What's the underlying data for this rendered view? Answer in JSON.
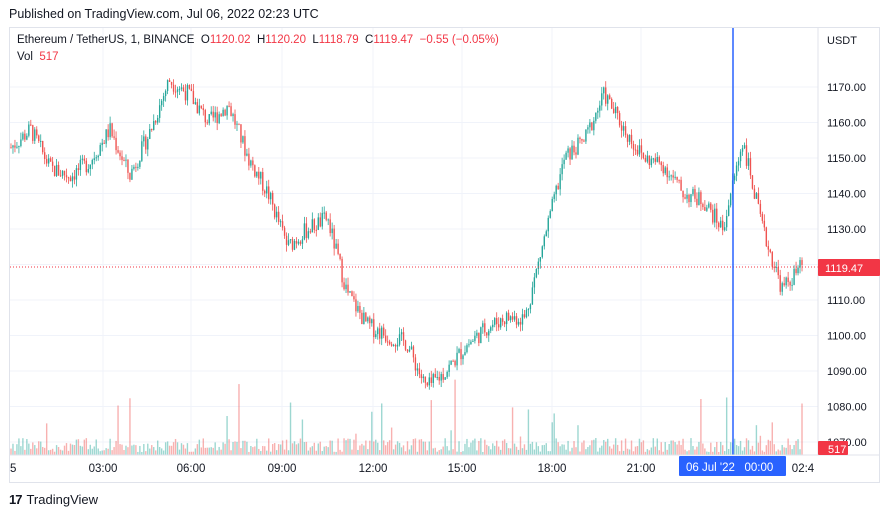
{
  "header": {
    "published": "Published on TradingView.com, Jul 06, 2022 02:23 UTC"
  },
  "legend": {
    "symbol": "Ethereum / TetherUS, 1, BINANCE",
    "o_label": "O",
    "o": "1120.02",
    "h_label": "H",
    "h": "1120.20",
    "l_label": "L",
    "l": "1118.79",
    "c_label": "C",
    "c": "1119.47",
    "change": "−0.55 (−0.05%)",
    "vol_label": "Vol",
    "vol": "517"
  },
  "price_axis": {
    "currency": "USDT",
    "current_price": "1119.47",
    "current_volume": "517"
  },
  "time_axis": {
    "crosshair_label": "06 Jul '22   00:00"
  },
  "footer": {
    "brand": "TradingView"
  },
  "colors": {
    "up": "#26a69a",
    "down": "#ef5350",
    "crosshair": "#2962ff",
    "price_tag": "#f23645"
  },
  "chart_data": {
    "type": "candlestick",
    "symbol": "ETHUSDT",
    "ylim": [
      1065,
      1180
    ],
    "y_ticks": [
      1070,
      1080,
      1090,
      1100,
      1110,
      1120,
      1130,
      1140,
      1150,
      1160,
      1170
    ],
    "x_ticks": [
      "5",
      "03:00",
      "06:00",
      "09:00",
      "12:00",
      "15:00",
      "18:00",
      "21:00",
      "02:4"
    ],
    "close_path": [
      [
        "01:00",
        1153
      ],
      [
        "01:45",
        1158
      ],
      [
        "02:30",
        1147
      ],
      [
        "03:15",
        1145
      ],
      [
        "04:00",
        1149
      ],
      [
        "04:30",
        1158
      ],
      [
        "05:00",
        1145
      ],
      [
        "05:30",
        1157
      ],
      [
        "06:00",
        1172
      ],
      [
        "06:45",
        1168
      ],
      [
        "07:30",
        1160
      ],
      [
        "08:00",
        1165
      ],
      [
        "08:40",
        1150
      ],
      [
        "09:30",
        1140
      ],
      [
        "10:15",
        1125
      ],
      [
        "11:00",
        1130
      ],
      [
        "11:40",
        1133
      ],
      [
        "12:15",
        1112
      ],
      [
        "12:45",
        1103
      ],
      [
        "13:30",
        1100
      ],
      [
        "14:15",
        1098
      ],
      [
        "15:00",
        1085
      ],
      [
        "15:30",
        1090
      ],
      [
        "16:15",
        1097
      ],
      [
        "17:00",
        1102
      ],
      [
        "17:45",
        1105
      ],
      [
        "18:15",
        1105
      ],
      [
        "18:45",
        1128
      ],
      [
        "19:30",
        1150
      ],
      [
        "20:15",
        1155
      ],
      [
        "21:00",
        1168
      ],
      [
        "21:40",
        1158
      ],
      [
        "22:20",
        1150
      ],
      [
        "23:00",
        1148
      ],
      [
        "23:30",
        1140
      ],
      [
        "00:00",
        1138
      ],
      [
        "00:30",
        1130
      ],
      [
        "01:00",
        1155
      ],
      [
        "01:45",
        1130
      ],
      [
        "02:10",
        1113
      ],
      [
        "02:23",
        1119.47
      ]
    ]
  }
}
